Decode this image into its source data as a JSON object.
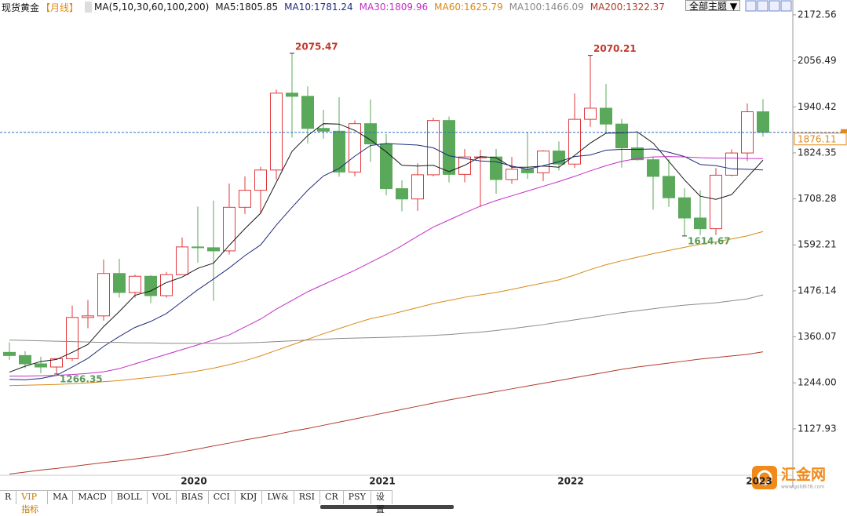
{
  "chart_data": {
    "type": "candlestick",
    "title": "现货黄金",
    "period": "【月线】",
    "indicator": "MA(5,10,30,60,100,200)",
    "categories": [
      null,
      null,
      null,
      null,
      null,
      null,
      null,
      null,
      null,
      null,
      null,
      "2020",
      null,
      null,
      null,
      null,
      null,
      null,
      null,
      null,
      null,
      null,
      null,
      "2021",
      null,
      null,
      null,
      null,
      null,
      null,
      null,
      null,
      null,
      null,
      null,
      "2022",
      null,
      null,
      null,
      null,
      null,
      null,
      null,
      null,
      null,
      null,
      null,
      "2023",
      null
    ],
    "open": [
      1321,
      1313,
      1292,
      1284,
      1305,
      1409,
      1413,
      1520,
      1472,
      1513,
      1464,
      1517,
      1587,
      1585,
      1577,
      1687,
      1730,
      1781,
      1975,
      1967,
      1886,
      1879,
      1776,
      1898,
      1847,
      1734,
      1708,
      1769,
      1906,
      1770,
      1814,
      1814,
      1757,
      1783,
      1774,
      1829,
      1796,
      1909,
      1937,
      1897,
      1837,
      1807,
      1765,
      1711,
      1660,
      1633,
      1768,
      1824,
      1928
    ],
    "high": [
      1346,
      1324,
      1310,
      1306,
      1439,
      1453,
      1555,
      1557,
      1517,
      1516,
      1524,
      1611,
      1689,
      1704,
      1747,
      1765,
      1789,
      1984,
      2075.47,
      1992,
      1933,
      1965,
      1906,
      1959,
      1872,
      1755,
      1798,
      1913,
      1916,
      1834,
      1832,
      1834,
      1814,
      1877,
      1831,
      1853,
      1974,
      2070.21,
      1998,
      1910,
      1879,
      1814,
      1808,
      1735,
      1730,
      1786,
      1833,
      1949,
      1960
    ],
    "low": [
      1302,
      1281,
      1268,
      1266.35,
      1299,
      1382,
      1401,
      1459,
      1459,
      1445,
      1459,
      1517,
      1547,
      1451,
      1568,
      1670,
      1671,
      1757,
      1863,
      1848,
      1860,
      1764,
      1765,
      1802,
      1717,
      1677,
      1678,
      1765,
      1750,
      1750,
      1688,
      1721,
      1746,
      1759,
      1753,
      1780,
      1786,
      1890,
      1872,
      1787,
      1805,
      1681,
      1688,
      1614.67,
      1617,
      1617,
      1765,
      1804,
      1865
    ],
    "close": [
      1313,
      1292,
      1284,
      1305,
      1409,
      1413,
      1520,
      1472,
      1513,
      1464,
      1517,
      1587,
      1585,
      1577,
      1687,
      1730,
      1781,
      1975,
      1967,
      1886,
      1879,
      1776,
      1898,
      1847,
      1734,
      1708,
      1769,
      1906,
      1770,
      1814,
      1814,
      1757,
      1783,
      1774,
      1829,
      1796,
      1909,
      1937,
      1897,
      1837,
      1807,
      1765,
      1711,
      1660,
      1633,
      1768,
      1824,
      1928,
      1876.11
    ],
    "up_color": "#e0393e",
    "down_color": "#5aa85a",
    "series": [
      {
        "name": "MA5:1805.85",
        "color": "#1a1a1a",
        "values": [
          1271,
          1286,
          1298,
          1303,
          1321,
          1341,
          1386,
          1424,
          1465,
          1476,
          1497,
          1511,
          1533,
          1546,
          1591,
          1633,
          1672,
          1750,
          1828,
          1868,
          1898,
          1897,
          1881,
          1857,
          1827,
          1793,
          1791,
          1793,
          1777,
          1793,
          1815,
          1812,
          1788,
          1788,
          1791,
          1788,
          1818,
          1849,
          1874,
          1875,
          1877,
          1849,
          1803,
          1756,
          1715,
          1707,
          1719,
          1763,
          1805.85
        ]
      },
      {
        "name": "MA10:1781.24",
        "color": "#1f2d7a",
        "values": [
          1253,
          1252,
          1255,
          1263,
          1284,
          1306,
          1336,
          1361,
          1384,
          1399,
          1419,
          1449,
          1479,
          1506,
          1534,
          1565,
          1592,
          1642,
          1687,
          1730,
          1766,
          1785,
          1816,
          1843,
          1848,
          1846,
          1844,
          1837,
          1817,
          1810,
          1804,
          1802,
          1791,
          1783,
          1792,
          1802,
          1815,
          1819,
          1831,
          1833,
          1833,
          1834,
          1826,
          1815,
          1795,
          1792,
          1784,
          1783,
          1781.24
        ]
      },
      {
        "name": "MA30:1809.96",
        "color": "#c42ec4",
        "values": [
          1261,
          1261,
          1262,
          1263,
          1265,
          1268,
          1272,
          1280,
          1292,
          1304,
          1316,
          1328,
          1340,
          1352,
          1365,
          1385,
          1405,
          1430,
          1452,
          1474,
          1492,
          1510,
          1528,
          1548,
          1568,
          1590,
          1614,
          1637,
          1655,
          1673,
          1690,
          1704,
          1716,
          1728,
          1740,
          1752,
          1765,
          1779,
          1792,
          1803,
          1810,
          1814,
          1815,
          1814,
          1812,
          1811,
          1811,
          1810,
          1809.96
        ]
      },
      {
        "name": "MA60:1625.79",
        "color": "#d98a16",
        "values": [
          1237,
          1238,
          1239,
          1240,
          1242,
          1244,
          1247,
          1250,
          1254,
          1258,
          1263,
          1268,
          1274,
          1281,
          1290,
          1300,
          1312,
          1326,
          1340,
          1354,
          1368,
          1381,
          1394,
          1406,
          1414,
          1424,
          1434,
          1444,
          1452,
          1460,
          1466,
          1472,
          1480,
          1488,
          1496,
          1504,
          1516,
          1530,
          1542,
          1552,
          1561,
          1570,
          1578,
          1586,
          1594,
          1600,
          1607,
          1615,
          1625.79
        ]
      },
      {
        "name": "MA100:1466.09",
        "color": "#8a8a8a",
        "values": [
          1352,
          1351,
          1350,
          1349,
          1348,
          1347,
          1346,
          1346,
          1345,
          1345,
          1344,
          1344,
          1344,
          1344,
          1344,
          1345,
          1346,
          1348,
          1350,
          1352,
          1354,
          1356,
          1357,
          1358,
          1359,
          1360,
          1362,
          1364,
          1366,
          1369,
          1372,
          1376,
          1381,
          1386,
          1391,
          1397,
          1403,
          1409,
          1415,
          1421,
          1426,
          1431,
          1436,
          1440,
          1443,
          1446,
          1451,
          1456,
          1466.09
        ]
      },
      {
        "name": "MA200:1322.37",
        "color": "#b03a2a",
        "values": [
          1014,
          1019,
          1024,
          1028,
          1033,
          1038,
          1043,
          1047,
          1052,
          1057,
          1063,
          1070,
          1077,
          1085,
          1092,
          1100,
          1107,
          1114,
          1122,
          1129,
          1137,
          1145,
          1153,
          1161,
          1169,
          1177,
          1185,
          1193,
          1201,
          1208,
          1215,
          1222,
          1229,
          1236,
          1243,
          1250,
          1257,
          1264,
          1271,
          1278,
          1284,
          1289,
          1294,
          1299,
          1304,
          1308,
          1312,
          1316,
          1322.37
        ]
      }
    ],
    "ylim": [
      1011,
      2210
    ],
    "yticks": [
      {
        "value": 1127.93,
        "label": "1127.93"
      },
      {
        "value": 1244,
        "label": "1244.00"
      },
      1360.07,
      1476.14,
      1592.21,
      1708.28,
      1824.35,
      1940.42,
      2056.49,
      2172.56
    ],
    "grid": false,
    "last_price_line": true
  },
  "ui": {
    "theme_menu": "全部主题",
    "tabs": [
      "R",
      "VIP指标",
      "MA",
      "MACD",
      "BOLL",
      "VOL",
      "BIAS",
      "CCI",
      "KDJ",
      "LW&",
      "RSI",
      "CR",
      "PSY",
      "设置"
    ],
    "logo": "汇金网",
    "logo_url": "www.gold678.com"
  }
}
